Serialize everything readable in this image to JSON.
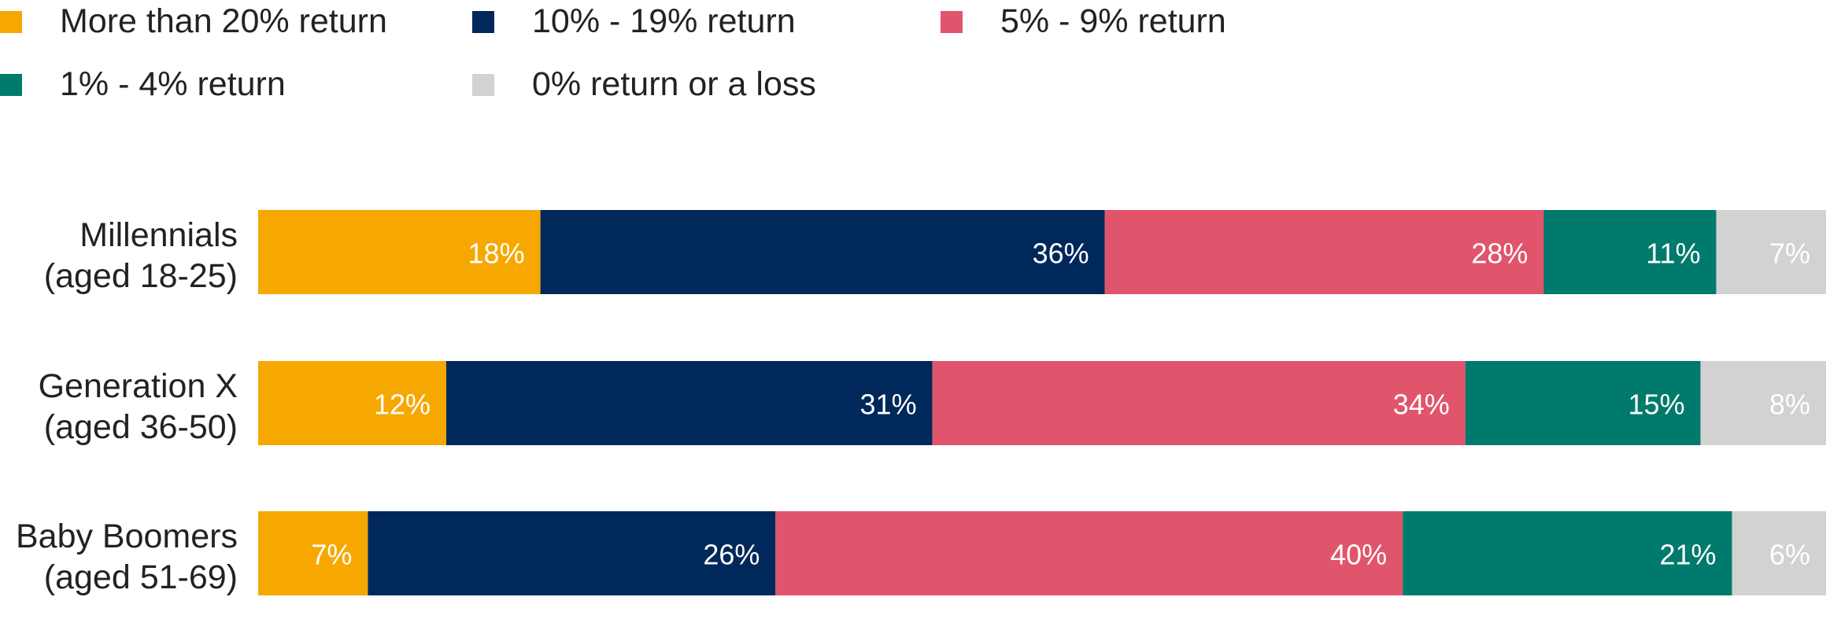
{
  "chart_data": {
    "type": "bar",
    "orientation": "horizontal",
    "stacked": true,
    "title": "",
    "xlabel": "",
    "ylabel": "",
    "xlim": [
      0,
      100
    ],
    "grid": false,
    "legend_position": "top-left",
    "categories": [
      [
        "Millennials",
        "(aged 18-25)"
      ],
      [
        "Generation X",
        "(aged 36-50)"
      ],
      [
        "Baby Boomers",
        "(aged 51-69)"
      ]
    ],
    "series": [
      {
        "name": "More than 20% return",
        "color": "#F6A800",
        "values": [
          18,
          12,
          7
        ],
        "labels": [
          "18%",
          "12%",
          "7%"
        ]
      },
      {
        "name": "10% - 19% return",
        "color": "#00285A",
        "values": [
          36,
          31,
          26
        ],
        "labels": [
          "36%",
          "31%",
          "26%"
        ]
      },
      {
        "name": "5% - 9% return",
        "color": "#E0546C",
        "values": [
          28,
          34,
          40
        ],
        "labels": [
          "28%",
          "34%",
          "40%"
        ]
      },
      {
        "name": "1% - 4% return",
        "color": "#007A6C",
        "values": [
          11,
          15,
          21
        ],
        "labels": [
          "11%",
          "15%",
          "21%"
        ]
      },
      {
        "name": "0% return or a loss",
        "color": "#D2D2D2",
        "values": [
          7,
          8,
          6
        ],
        "labels": [
          "7%",
          "8%",
          "6%"
        ]
      }
    ]
  }
}
